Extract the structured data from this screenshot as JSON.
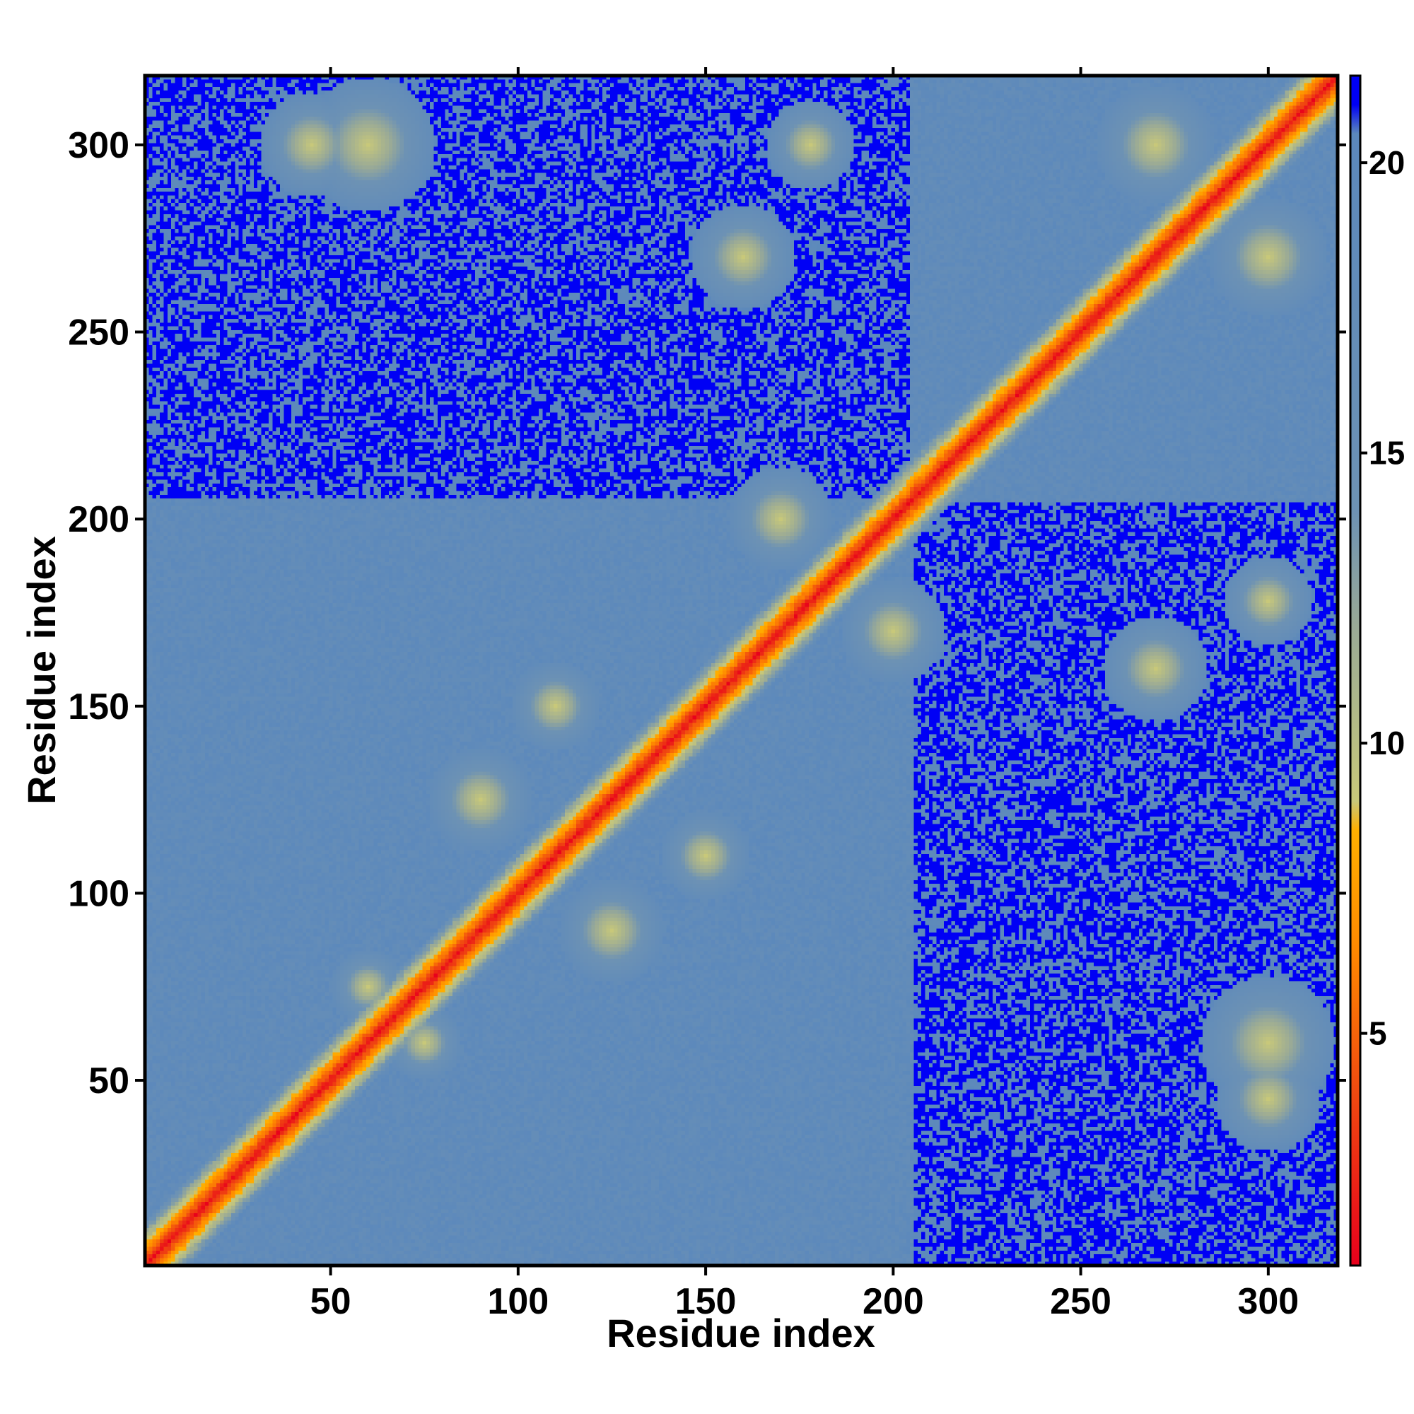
{
  "chart_data": {
    "type": "heatmap",
    "title": "",
    "xlabel": "Residue index",
    "ylabel": "Residue index",
    "xlim": [
      1,
      318
    ],
    "ylim": [
      1,
      318
    ],
    "x_ticks": [
      50,
      100,
      150,
      200,
      250,
      300
    ],
    "y_ticks": [
      50,
      100,
      150,
      200,
      250,
      300
    ],
    "colorbar": {
      "ticks": [
        5,
        10,
        15,
        20
      ],
      "range": [
        1,
        21.5
      ],
      "stops": [
        {
          "value": 1.0,
          "color": "#e8001c"
        },
        {
          "value": 4.0,
          "color": "#f04a10"
        },
        {
          "value": 6.5,
          "color": "#ff8a00"
        },
        {
          "value": 8.5,
          "color": "#ffb000"
        },
        {
          "value": 9.0,
          "color": "#c8c87a"
        },
        {
          "value": 12.0,
          "color": "#9aaa96"
        },
        {
          "value": 14.0,
          "color": "#6d92b4"
        },
        {
          "value": 20.5,
          "color": "#5b88bc"
        },
        {
          "value": 21.0,
          "color": "#0000f5"
        },
        {
          "value": 21.5,
          "color": "#0000f5"
        }
      ]
    },
    "background_value": 21.5,
    "colors": {
      "far": "#0000f5",
      "mid": "#5b88bc",
      "near": "#c8c87a",
      "contact": "#ff8a00",
      "diagonal": "#e8001c"
    }
  }
}
